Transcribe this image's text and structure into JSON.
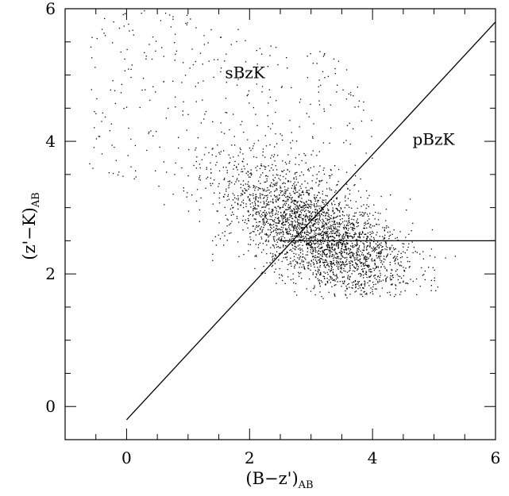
{
  "chart_data": {
    "type": "scatter",
    "title": "",
    "xlabel": {
      "main": "(B−z')",
      "sub": "AB"
    },
    "ylabel": {
      "main": "(z'−K)",
      "sub": "AB"
    },
    "xlim": [
      -1.0,
      6.0
    ],
    "ylim": [
      -0.5,
      6.0
    ],
    "xticks": [
      0,
      2,
      4,
      6
    ],
    "xtick_labels": [
      "0",
      "2",
      "4",
      "6"
    ],
    "yticks": [
      0,
      2,
      4,
      6
    ],
    "ytick_labels": [
      "0",
      "2",
      "4",
      "6"
    ],
    "x_minor_step": 0.5,
    "y_minor_step": 0.5,
    "grid": false,
    "annotations": [
      {
        "text": "sBzK",
        "x": 1.6,
        "y": 4.95
      },
      {
        "text": "pBzK",
        "x": 4.65,
        "y": 3.95
      }
    ],
    "lines": [
      {
        "name": "BzK diagonal",
        "x": [
          0.0,
          6.0
        ],
        "y": [
          -0.2,
          5.8
        ]
      },
      {
        "name": "horizontal cut",
        "x": [
          2.5,
          6.0
        ],
        "y": [
          2.5,
          2.5
        ]
      }
    ],
    "point_cloud": {
      "description": "Dense cloud of several thousand BzK-selected sources",
      "n_points": 3200,
      "core": {
        "cx": 3.1,
        "cy": 2.6,
        "slope": -0.42,
        "sx": 0.75,
        "sy": 0.4
      },
      "x_range": [
        -0.8,
        5.4
      ],
      "y_range": [
        1.55,
        6.0
      ],
      "sparse_upper_tail": true
    }
  }
}
